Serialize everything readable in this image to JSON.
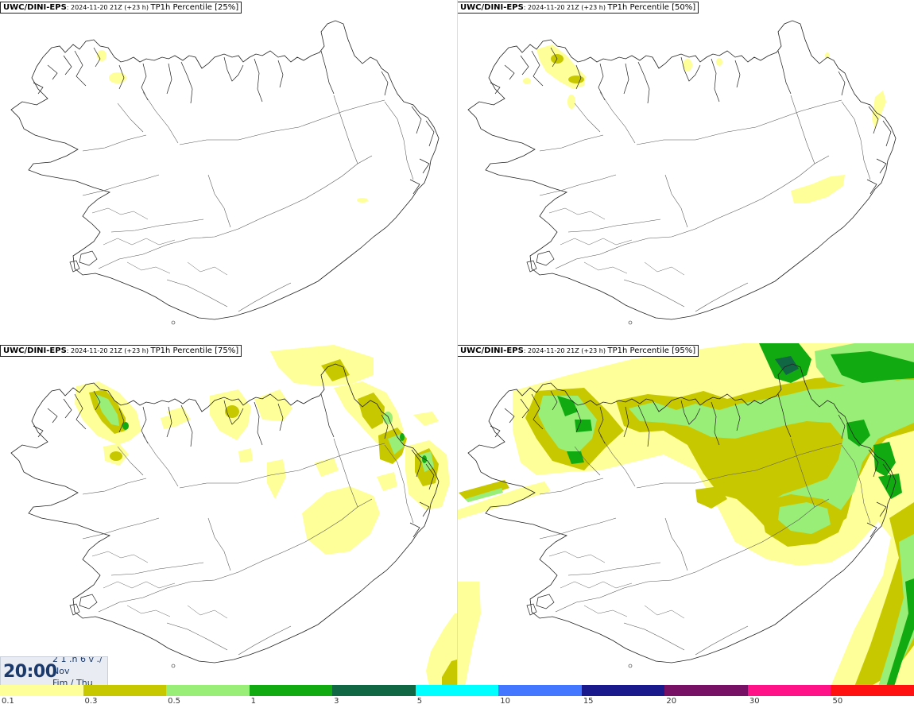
{
  "panels": [
    {
      "model": "UWC/DINI-EPS",
      "run": ": 2024-11-20 21Z (+23 h) ",
      "product": "TP1h Percentile [25%]"
    },
    {
      "model": "UWC/DINI-EPS",
      "run": ": 2024-11-20 21Z (+23 h) ",
      "product": "TP1h Percentile [50%]"
    },
    {
      "model": "UWC/DINI-EPS",
      "run": ": 2024-11-20 21Z (+23 h) ",
      "product": "TP1h Percentile [75%]"
    },
    {
      "model": "UWC/DINI-EPS",
      "run": ": 2024-11-20 21Z (+23 h) ",
      "product": "TP1h Percentile [95%]"
    }
  ],
  "valid_time": {
    "time": "20:00",
    "line1": "2 1 .n 6 v ./",
    "line2": "Nov",
    "line3": "Fim / Thu"
  },
  "legend": {
    "colors": [
      "#ffff99",
      "#c8c800",
      "#99ee77",
      "#11aa11",
      "#116644",
      "#00ffff",
      "#4477ff",
      "#1a1a8c",
      "#771166",
      "#ff1188",
      "#ff1111"
    ],
    "ticks": [
      "0.1",
      "0.3",
      "0.5",
      "1",
      "3",
      "5",
      "10",
      "15",
      "20",
      "30",
      "50"
    ]
  },
  "colors": {
    "light_yellow": "#ffff99",
    "olive": "#c8c800",
    "light_green": "#99ee77",
    "green": "#11aa11",
    "coast": "#222222",
    "road": "#555555"
  }
}
